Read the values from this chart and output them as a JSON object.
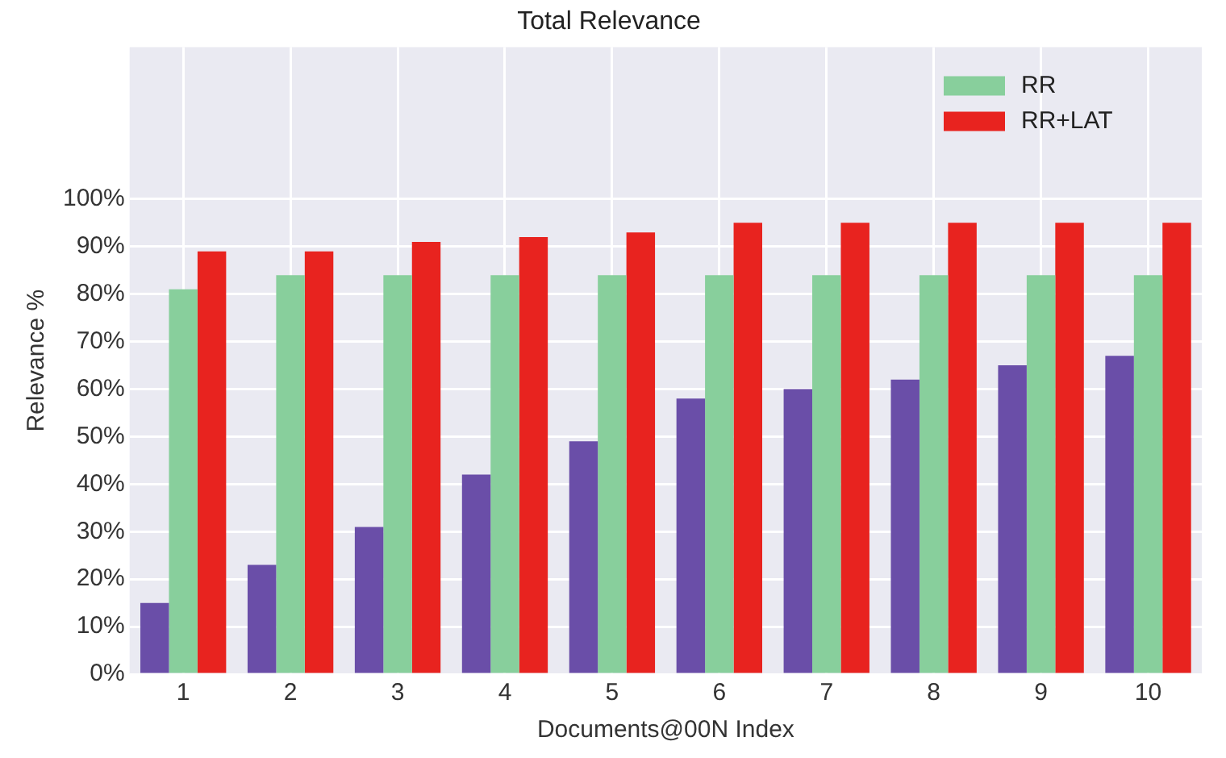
{
  "chart_data": {
    "type": "bar",
    "title": "Total Relevance",
    "xlabel": "Documents@00N Index",
    "ylabel": "Relevance %",
    "categories": [
      "1",
      "2",
      "3",
      "4",
      "5",
      "6",
      "7",
      "8",
      "9",
      "10"
    ],
    "series": [
      {
        "color": "#6a4ea8",
        "values": [
          15,
          23,
          31,
          42,
          49,
          58,
          60,
          62,
          65,
          67
        ]
      },
      {
        "name": "RR",
        "color": "#88cf9c",
        "values": [
          81,
          84,
          84,
          84,
          84,
          84,
          84,
          84,
          84,
          84
        ]
      },
      {
        "name": "RR+LAT",
        "color": "#e8231f",
        "values": [
          89,
          89,
          91,
          92,
          93,
          95,
          95,
          95,
          95,
          95
        ]
      }
    ],
    "ylim": [
      0,
      132
    ],
    "yticks": [
      {
        "value": 0,
        "label": "0%"
      },
      {
        "value": 10,
        "label": "10%"
      },
      {
        "value": 20,
        "label": "20%"
      },
      {
        "value": 30,
        "label": "30%"
      },
      {
        "value": 40,
        "label": "40%"
      },
      {
        "value": 50,
        "label": "50%"
      },
      {
        "value": 60,
        "label": "60%"
      },
      {
        "value": 70,
        "label": "70%"
      },
      {
        "value": 80,
        "label": "80%"
      },
      {
        "value": 90,
        "label": "90%"
      },
      {
        "value": 100,
        "label": "100%"
      }
    ],
    "grid": true,
    "legend": "top right"
  }
}
